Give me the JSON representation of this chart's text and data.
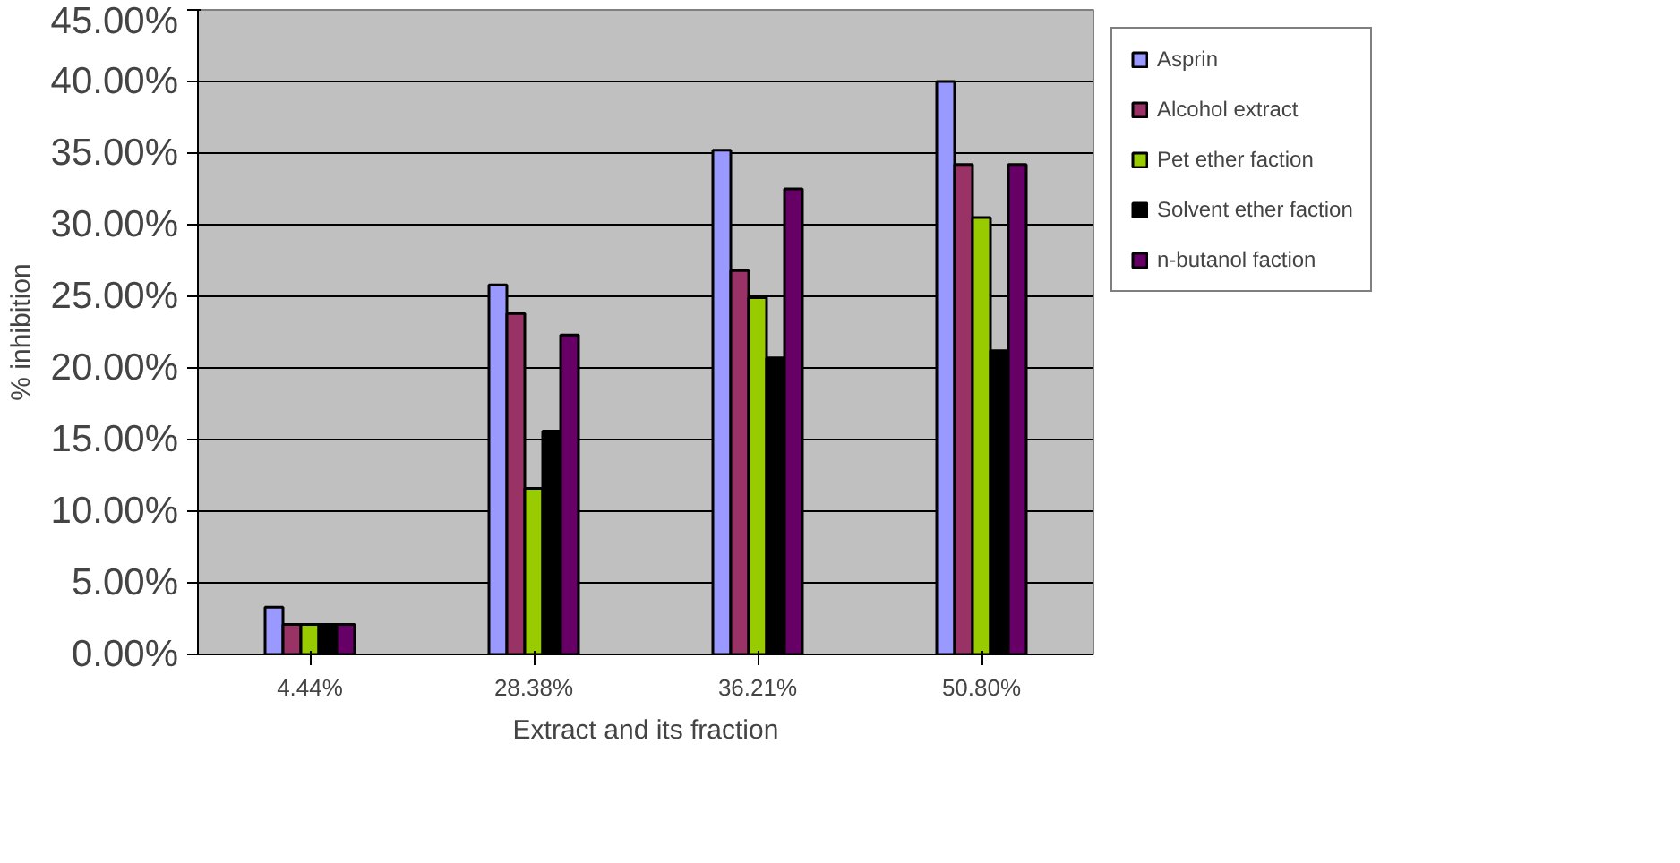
{
  "chart_data": {
    "type": "bar",
    "xlabel": "Extract and its fraction",
    "ylabel": "% inhibition",
    "categories": [
      "4.44%",
      "28.38%",
      "36.21%",
      "50.80%"
    ],
    "series": [
      {
        "name": "Asprin",
        "color": "#9999ff",
        "values": [
          3.3,
          25.8,
          35.2,
          40.0
        ]
      },
      {
        "name": "Alcohol extract",
        "color": "#993366",
        "values": [
          2.1,
          23.8,
          26.8,
          34.2
        ]
      },
      {
        "name": "Pet ether faction",
        "color": "#99cc00",
        "values": [
          2.1,
          11.6,
          24.9,
          30.5
        ]
      },
      {
        "name": "Solvent ether faction",
        "color": "#000000",
        "values": [
          2.1,
          15.6,
          20.7,
          21.2
        ]
      },
      {
        "name": "n-butanol faction",
        "color": "#660066",
        "values": [
          2.1,
          22.3,
          32.5,
          34.2
        ]
      }
    ],
    "ylim": [
      0,
      45
    ],
    "yticks": [
      {
        "value": 0,
        "label": "0.00%"
      },
      {
        "value": 5,
        "label": "5.00%"
      },
      {
        "value": 10,
        "label": "10.00%"
      },
      {
        "value": 15,
        "label": "15.00%"
      },
      {
        "value": 20,
        "label": "20.00%"
      },
      {
        "value": 25,
        "label": "25.00%"
      },
      {
        "value": 30,
        "label": "30.00%"
      },
      {
        "value": 35,
        "label": "35.00%"
      },
      {
        "value": 40,
        "label": "40.00%"
      },
      {
        "value": 45,
        "label": "45.00%"
      }
    ],
    "grid": "y",
    "legend": "right"
  }
}
